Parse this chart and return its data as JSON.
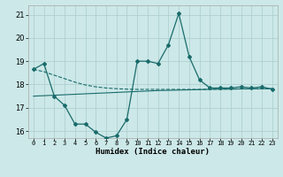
{
  "title": "",
  "xlabel": "Humidex (Indice chaleur)",
  "background_color": "#cce8e8",
  "grid_color": "#aacccc",
  "line_color": "#1a6b6b",
  "xlim": [
    -0.5,
    23.5
  ],
  "ylim": [
    15.7,
    21.4
  ],
  "yticks": [
    16,
    17,
    18,
    19,
    20,
    21
  ],
  "xtick_labels": [
    "0",
    "1",
    "2",
    "3",
    "4",
    "5",
    "6",
    "7",
    "8",
    "9",
    "10",
    "11",
    "12",
    "13",
    "14",
    "15",
    "16",
    "17",
    "18",
    "19",
    "20",
    "21",
    "22",
    "23"
  ],
  "series1_x": [
    0,
    1,
    2,
    3,
    4,
    5,
    6,
    7,
    8,
    9,
    10,
    11,
    12,
    13,
    14,
    15,
    16,
    17,
    18,
    19,
    20,
    21,
    22,
    23
  ],
  "series1_y": [
    18.65,
    18.9,
    17.5,
    17.1,
    16.3,
    16.3,
    15.95,
    15.7,
    15.8,
    16.5,
    19.0,
    19.0,
    18.9,
    19.7,
    21.05,
    19.2,
    18.2,
    17.85,
    17.85,
    17.85,
    17.9,
    17.85,
    17.9,
    17.8
  ],
  "series2_x": [
    0,
    1,
    2,
    3,
    4,
    5,
    6,
    7,
    8,
    9,
    10,
    11,
    12,
    13,
    14,
    15,
    16,
    17,
    18,
    19,
    20,
    21,
    22,
    23
  ],
  "series2_y": [
    17.5,
    17.52,
    17.54,
    17.56,
    17.58,
    17.6,
    17.62,
    17.64,
    17.66,
    17.68,
    17.7,
    17.72,
    17.74,
    17.75,
    17.76,
    17.77,
    17.78,
    17.79,
    17.8,
    17.8,
    17.81,
    17.81,
    17.82,
    17.82
  ],
  "series3_x": [
    0,
    1,
    2,
    3,
    4,
    5,
    6,
    7,
    8,
    9,
    10,
    11,
    12,
    13,
    14,
    15,
    16,
    17,
    18,
    19,
    20,
    21,
    22,
    23
  ],
  "series3_y": [
    18.65,
    18.55,
    18.4,
    18.25,
    18.1,
    17.98,
    17.9,
    17.85,
    17.82,
    17.8,
    17.79,
    17.79,
    17.79,
    17.79,
    17.79,
    17.79,
    17.79,
    17.8,
    17.8,
    17.81,
    17.81,
    17.82,
    17.82,
    17.82
  ]
}
